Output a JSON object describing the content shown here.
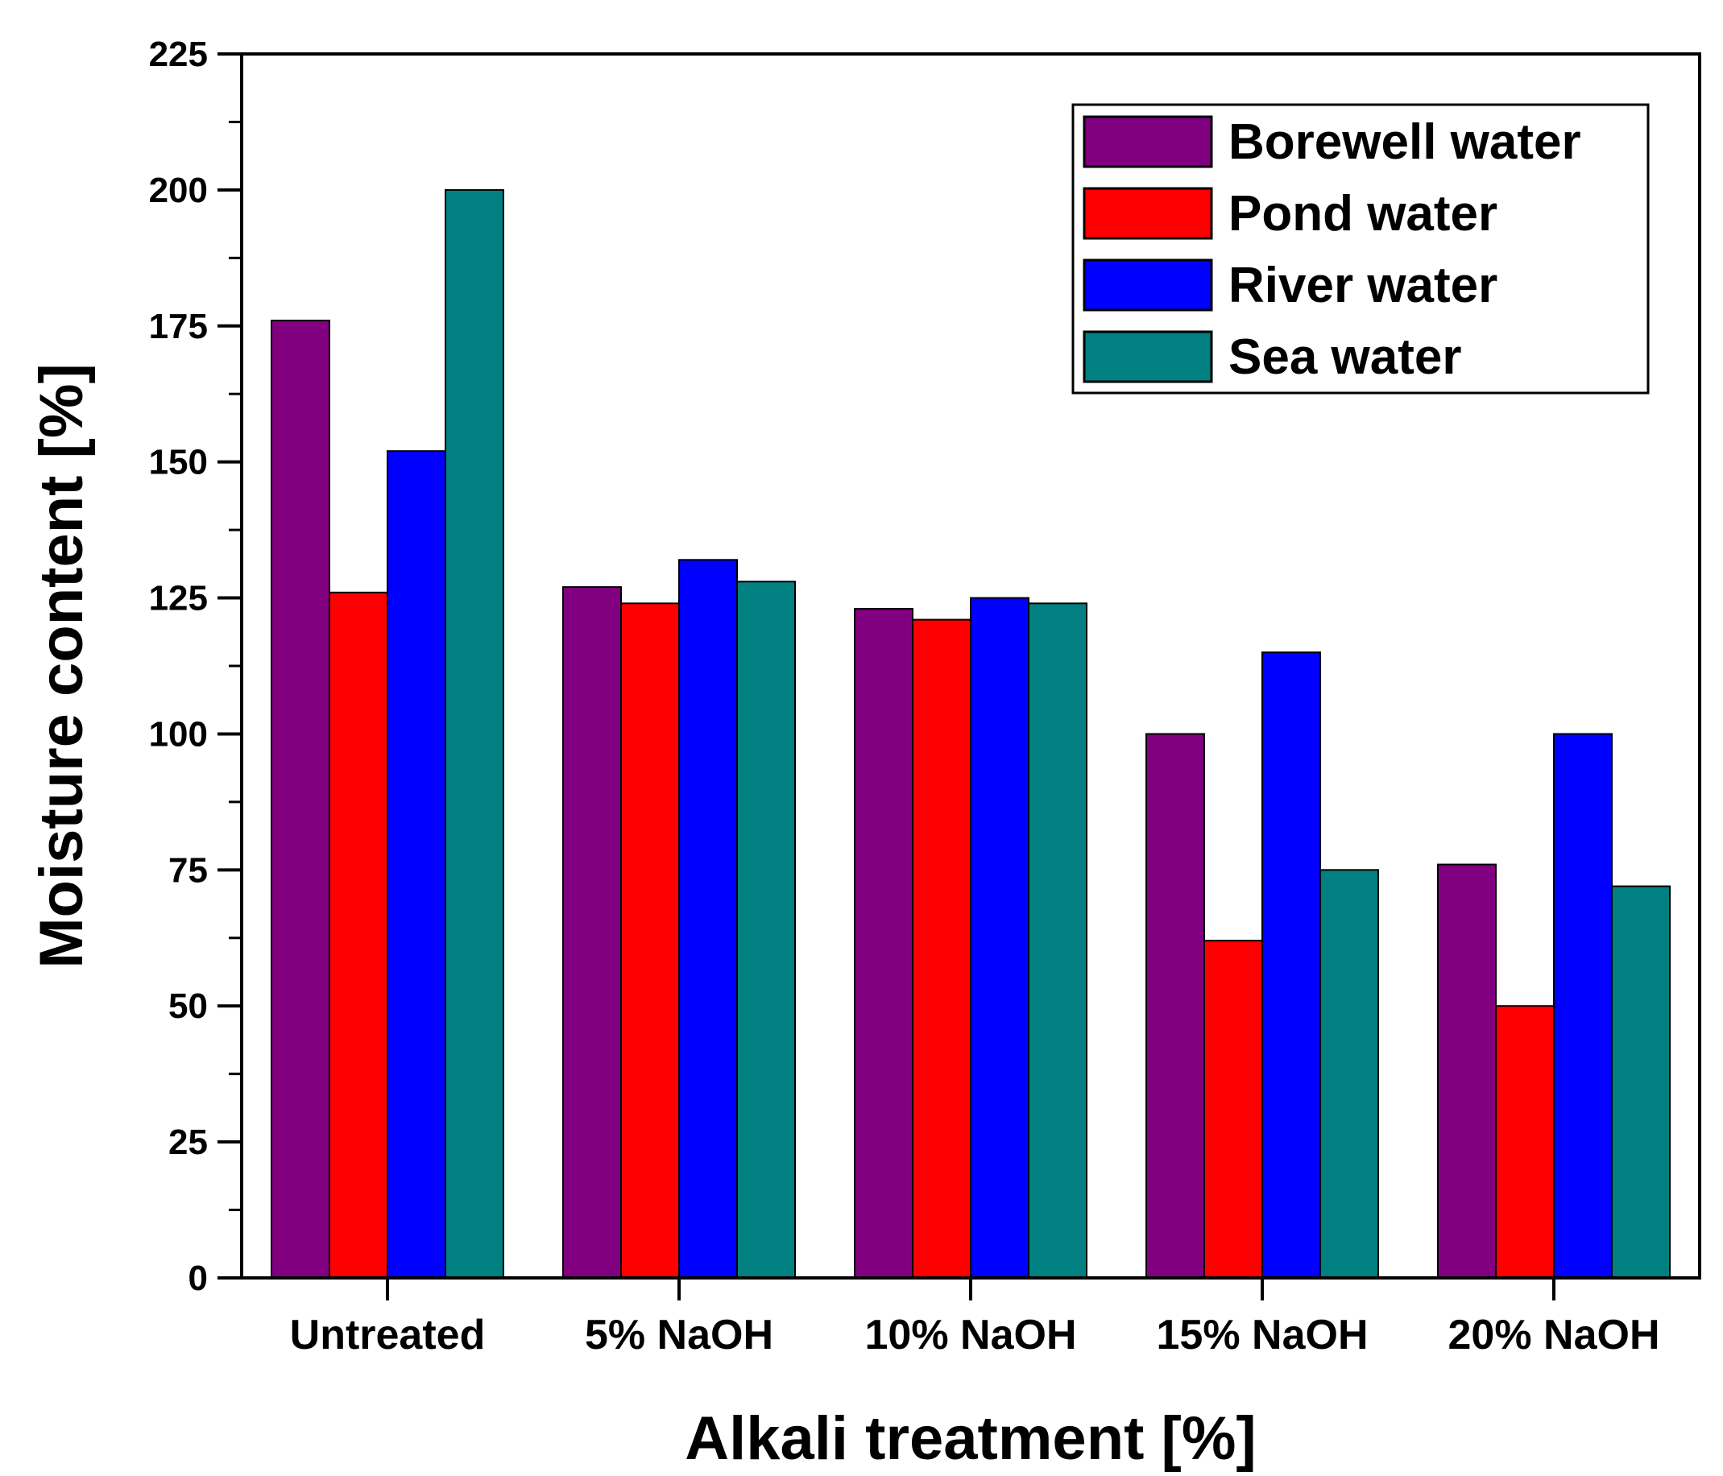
{
  "chart_data": {
    "type": "bar",
    "title": "",
    "xlabel": "Alkali treatment [%]",
    "ylabel": "Moisture content [%]",
    "ylim": [
      0,
      225
    ],
    "yticks": [
      0,
      25,
      50,
      75,
      100,
      125,
      150,
      175,
      200,
      225
    ],
    "grid": false,
    "legend_position": "top-right",
    "categories": [
      "Untreated",
      "5% NaOH",
      "10% NaOH",
      "15% NaOH",
      "20% NaOH"
    ],
    "series": [
      {
        "name": "Borewell water",
        "color": "#800080",
        "values": [
          176,
          127,
          123,
          100,
          76
        ]
      },
      {
        "name": "Pond water",
        "color": "#ff0000",
        "values": [
          126,
          124,
          121,
          62,
          50
        ]
      },
      {
        "name": "River water",
        "color": "#0000ff",
        "values": [
          152,
          132,
          125,
          115,
          100
        ]
      },
      {
        "name": "Sea water",
        "color": "#008080",
        "values": [
          200,
          128,
          124,
          75,
          72
        ]
      }
    ]
  }
}
